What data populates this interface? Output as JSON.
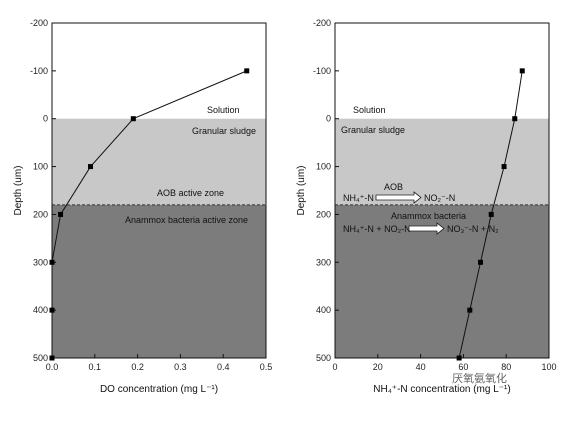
{
  "chart_data": [
    {
      "type": "line",
      "xlabel": "DO concentration (mg L⁻¹)",
      "ylabel": "Depth (um)",
      "xlim": [
        0,
        0.5
      ],
      "ylim": [
        500,
        -200
      ],
      "xticks": [
        "0.0",
        "0.1",
        "0.2",
        "0.3",
        "0.4",
        "0.5"
      ],
      "yticks": [
        "-200",
        "-100",
        "0",
        "100",
        "200",
        "300",
        "400",
        "500"
      ],
      "series": [
        {
          "x": [
            0.455,
            0.19,
            0.09,
            0.02,
            0.0,
            0.0,
            0.0
          ],
          "y": [
            -100,
            0,
            100,
            200,
            300,
            400,
            500
          ]
        }
      ],
      "zones": {
        "solution": "Solution",
        "granular": "Granular sludge",
        "aob": "AOB active zone",
        "anammox": "Anammox bacteria active zone"
      },
      "boundary_depth": 180,
      "colors": {
        "solution": "#ffffff",
        "granular": "#c8c8c8",
        "anammox": "#7c7c7c"
      }
    },
    {
      "type": "line",
      "xlabel": "NH₄⁺-N concentration (mg L⁻¹)",
      "ylabel": "Depth (um)",
      "xlim": [
        0,
        100
      ],
      "ylim": [
        500,
        -200
      ],
      "xticks": [
        "0",
        "20",
        "40",
        "60",
        "80",
        "100"
      ],
      "yticks": [
        "-200",
        "-100",
        "0",
        "100",
        "200",
        "300",
        "400",
        "500"
      ],
      "series": [
        {
          "x": [
            87.5,
            84,
            79,
            73,
            68,
            63,
            58
          ],
          "y": [
            -100,
            0,
            100,
            200,
            300,
            400,
            500
          ]
        }
      ],
      "zones": {
        "solution": "Solution",
        "granular": "Granular sludge",
        "anammox": "Anammox bacteria"
      },
      "reactions": {
        "aob_label": "AOB",
        "aob_left": "NH₄⁺-N",
        "aob_right": "NO₂⁻-N",
        "anammox_left": "NH₄⁺-N + NO₂-N",
        "anammox_right": "NO₃⁻-N + N₂"
      },
      "boundary_depth": 180,
      "colors": {
        "solution": "#ffffff",
        "granular": "#c8c8c8",
        "anammox": "#7c7c7c"
      }
    }
  ],
  "watermark": "厌氧氨氧化"
}
